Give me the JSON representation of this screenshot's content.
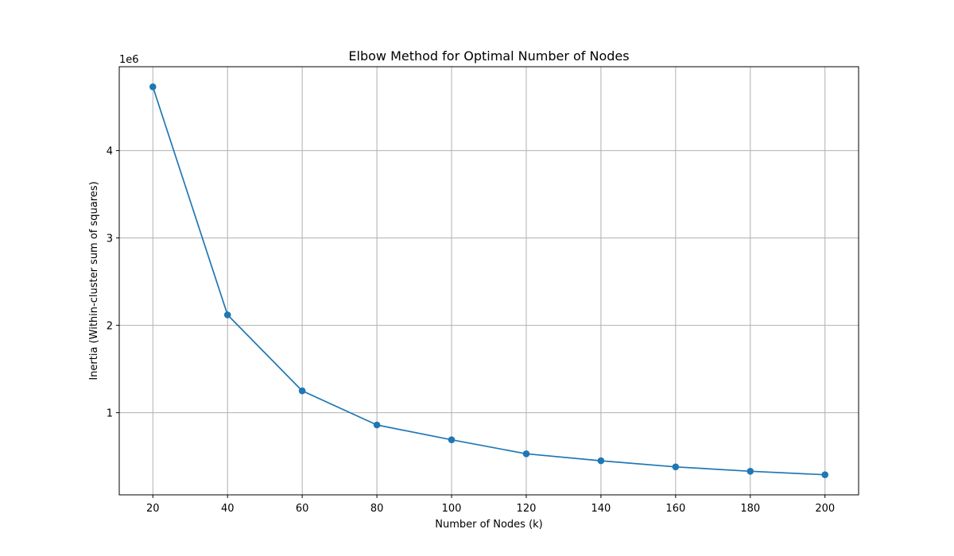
{
  "chart_data": {
    "type": "line",
    "title": "Elbow Method for Optimal Number of Nodes",
    "xlabel": "Number of Nodes (k)",
    "ylabel": "Inertia (Within-cluster sum of squares)",
    "y_offset_label": "1e6",
    "x": [
      20,
      40,
      60,
      80,
      100,
      120,
      140,
      160,
      180,
      200
    ],
    "series": [
      {
        "values": [
          4.73,
          2.12,
          1.25,
          0.86,
          0.69,
          0.53,
          0.45,
          0.38,
          0.33,
          0.29
        ],
        "color": "#1f77b4",
        "marker": "circle"
      }
    ],
    "xlim": [
      11,
      209
    ],
    "ylim": [
      0.06,
      4.96
    ],
    "xticks": [
      20,
      40,
      60,
      80,
      100,
      120,
      140,
      160,
      180,
      200
    ],
    "xtick_labels": [
      "20",
      "40",
      "60",
      "80",
      "100",
      "120",
      "140",
      "160",
      "180",
      "200"
    ],
    "yticks": [
      1,
      2,
      3,
      4
    ],
    "ytick_labels": [
      "1",
      "2",
      "3",
      "4"
    ],
    "grid": true
  }
}
